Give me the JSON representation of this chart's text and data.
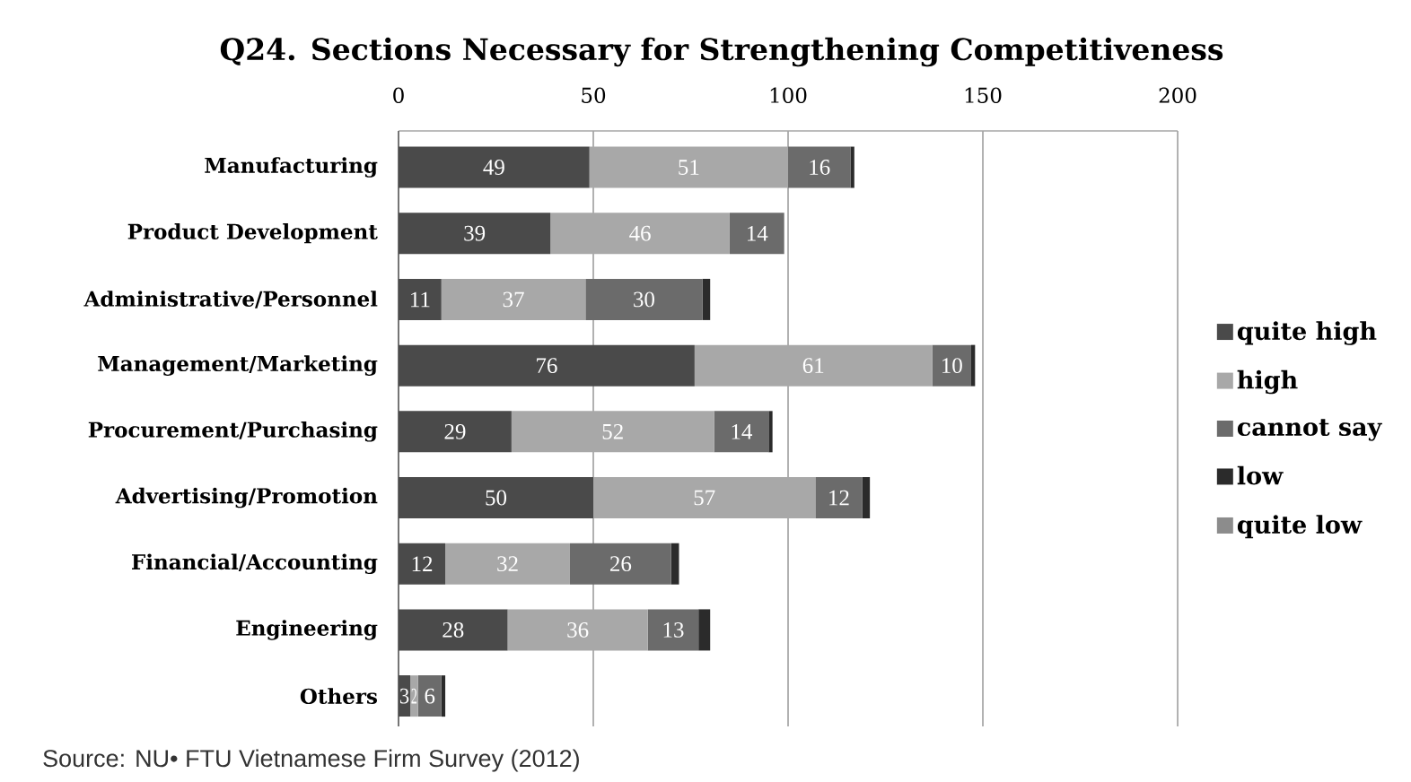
{
  "chart_data": {
    "type": "bar",
    "orientation": "horizontal",
    "stacked": true,
    "title": "Q24. Sections Necessary for Strengthening Competitiveness",
    "categories": [
      "Manufacturing",
      "Product Development",
      "Administrative/Personnel",
      "Management/Marketing",
      "Procurement/Purchasing",
      "Advertising/Promotion",
      "Financial/Accounting",
      "Engineering",
      "Others"
    ],
    "series": [
      {
        "name": "quite high",
        "color": "#4a4a4a",
        "values": [
          49,
          39,
          11,
          76,
          29,
          50,
          12,
          28,
          3
        ],
        "value_labels": [
          "49",
          "39",
          "11",
          "76",
          "29",
          "50",
          "12",
          "28",
          "3"
        ]
      },
      {
        "name": "high",
        "color": "#a8a8a8",
        "values": [
          51,
          46,
          37,
          61,
          52,
          57,
          32,
          36,
          2
        ],
        "value_labels": [
          "51",
          "46",
          "37",
          "61",
          "52",
          "57",
          "32",
          "36",
          "2"
        ]
      },
      {
        "name": "cannot say",
        "color": "#6b6b6b",
        "values": [
          16,
          14,
          30,
          10,
          14,
          12,
          26,
          13,
          6
        ],
        "value_labels": [
          "16",
          "14",
          "30",
          "10",
          "14",
          "12",
          "26",
          "13",
          "6"
        ]
      },
      {
        "name": "low",
        "color": "#2b2b2b",
        "values": [
          1,
          0,
          2,
          1,
          1,
          2,
          2,
          3,
          1
        ]
      },
      {
        "name": "quite low",
        "color": "#8c8c8c",
        "values": [
          0,
          0,
          0,
          0,
          0,
          0,
          0,
          0,
          0
        ]
      }
    ],
    "xlim": [
      0,
      200
    ],
    "xticks": [
      0,
      50,
      100,
      150,
      200
    ],
    "grid": "x",
    "legend": "right",
    "annotations": [
      "Source: NU• FTU Vietnamese Firm Survey (2012)"
    ]
  }
}
